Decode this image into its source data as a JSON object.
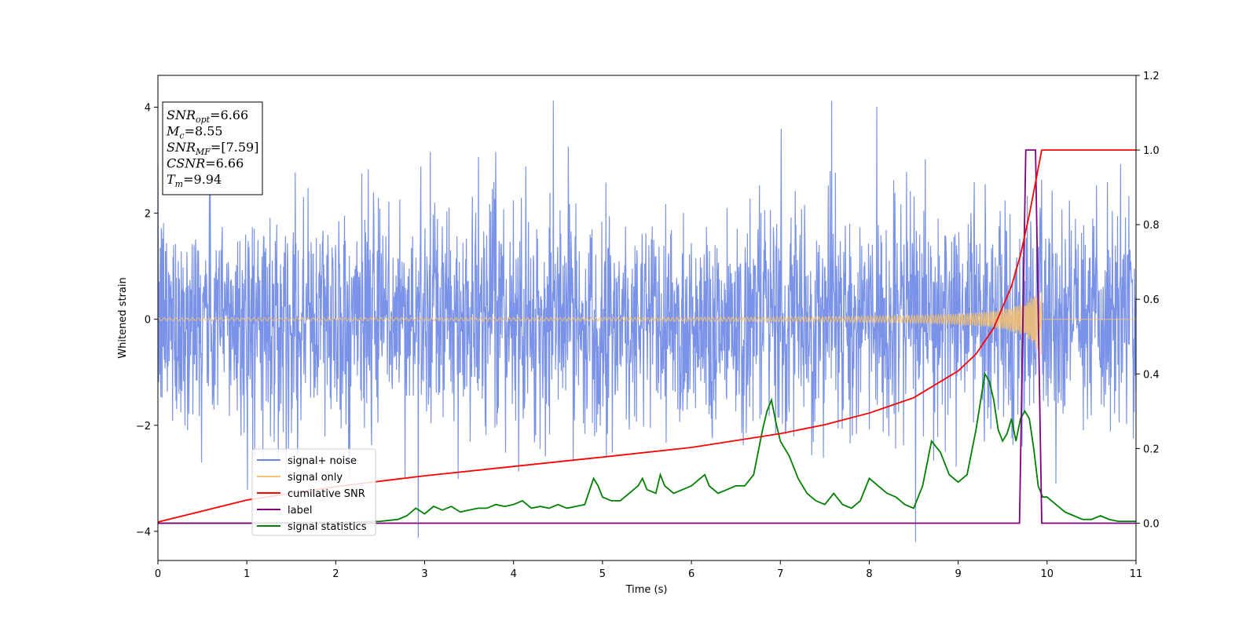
{
  "chart_data": {
    "type": "line",
    "xlabel": "Time (s)",
    "ylabel_left": "Whitened strain",
    "ylabel_right": "",
    "xlim": [
      0,
      11
    ],
    "ylim_left": [
      -4.55,
      4.6
    ],
    "ylim_right": [
      -0.1,
      1.2
    ],
    "xticks": [
      "0",
      "1",
      "2",
      "3",
      "4",
      "5",
      "6",
      "7",
      "8",
      "9",
      "10",
      "11"
    ],
    "yticks_left": [
      "−4",
      "−2",
      "0",
      "2",
      "4"
    ],
    "yticks_right": [
      "0.0",
      "0.2",
      "0.4",
      "0.6",
      "0.8",
      "1.0",
      "1.2"
    ],
    "grid": false,
    "legend_position": "lower-left",
    "annotation": {
      "lines": [
        {
          "main": "SNR",
          "sub": "opt",
          "value": "=6.66"
        },
        {
          "main": "M",
          "sub": "c",
          "value": "=8.55"
        },
        {
          "main": "SNR",
          "sub": "MF",
          "value": "=[7.59]"
        },
        {
          "main": "CSNR",
          "sub": "",
          "value": "=6.66"
        },
        {
          "main": "T",
          "sub": "m",
          "value": "=9.94"
        }
      ]
    },
    "series": [
      {
        "name": "signal+ noise",
        "color": "#6b87e6",
        "axis": "left",
        "description": "noisy whitened strain, amplitude ~±2.5 with spikes to ±4"
      },
      {
        "name": "signal only",
        "color": "#f5c070",
        "axis": "left",
        "chirp_end_time": 9.94,
        "max_amplitude": 0.72
      },
      {
        "name": "cumilative SNR",
        "color": "#ff0000",
        "axis": "right",
        "x": [
          0,
          1,
          2,
          3,
          4,
          5,
          6,
          7,
          7.5,
          8,
          8.5,
          9,
          9.2,
          9.4,
          9.6,
          9.7,
          9.8,
          9.88,
          9.94,
          10,
          11
        ],
        "y": [
          0.003,
          0.062,
          0.098,
          0.127,
          0.152,
          0.177,
          0.203,
          0.24,
          0.264,
          0.295,
          0.336,
          0.408,
          0.453,
          0.523,
          0.635,
          0.718,
          0.827,
          0.925,
          1.0,
          1.0,
          1.0
        ]
      },
      {
        "name": "label",
        "color": "#800080",
        "axis": "right",
        "x": [
          0,
          9.69,
          9.76,
          9.87,
          9.94,
          11
        ],
        "y": [
          0,
          0,
          1.0,
          1.0,
          0,
          0
        ]
      },
      {
        "name": "signal statistics",
        "color": "#008000",
        "axis": "right",
        "x": [
          0,
          1,
          2,
          2.5,
          2.7,
          2.8,
          2.9,
          3.0,
          3.1,
          3.2,
          3.3,
          3.4,
          3.5,
          3.6,
          3.7,
          3.8,
          3.9,
          4.0,
          4.1,
          4.2,
          4.3,
          4.4,
          4.5,
          4.6,
          4.7,
          4.8,
          4.9,
          4.95,
          5.0,
          5.1,
          5.2,
          5.3,
          5.4,
          5.45,
          5.5,
          5.6,
          5.65,
          5.7,
          5.8,
          5.9,
          6.0,
          6.1,
          6.15,
          6.2,
          6.3,
          6.4,
          6.5,
          6.6,
          6.7,
          6.8,
          6.85,
          6.9,
          6.95,
          7.0,
          7.1,
          7.2,
          7.3,
          7.4,
          7.5,
          7.6,
          7.7,
          7.8,
          7.9,
          8.0,
          8.1,
          8.2,
          8.3,
          8.4,
          8.5,
          8.6,
          8.7,
          8.8,
          8.9,
          9.0,
          9.1,
          9.2,
          9.3,
          9.35,
          9.4,
          9.45,
          9.5,
          9.55,
          9.6,
          9.65,
          9.7,
          9.75,
          9.8,
          9.85,
          9.9,
          9.95,
          10.0,
          10.1,
          10.2,
          10.3,
          10.4,
          10.5,
          10.6,
          10.7,
          10.8,
          10.9,
          11
        ],
        "y": [
          0,
          0,
          0.002,
          0.005,
          0.01,
          0.02,
          0.04,
          0.025,
          0.045,
          0.035,
          0.045,
          0.03,
          0.035,
          0.04,
          0.04,
          0.05,
          0.045,
          0.05,
          0.06,
          0.04,
          0.045,
          0.04,
          0.05,
          0.04,
          0.045,
          0.05,
          0.12,
          0.1,
          0.07,
          0.06,
          0.06,
          0.08,
          0.1,
          0.12,
          0.09,
          0.08,
          0.13,
          0.1,
          0.08,
          0.09,
          0.1,
          0.12,
          0.13,
          0.1,
          0.08,
          0.09,
          0.1,
          0.1,
          0.13,
          0.25,
          0.3,
          0.33,
          0.27,
          0.22,
          0.18,
          0.12,
          0.08,
          0.06,
          0.05,
          0.08,
          0.05,
          0.04,
          0.06,
          0.12,
          0.1,
          0.08,
          0.07,
          0.05,
          0.04,
          0.1,
          0.22,
          0.19,
          0.13,
          0.11,
          0.13,
          0.25,
          0.4,
          0.38,
          0.33,
          0.25,
          0.22,
          0.24,
          0.28,
          0.22,
          0.28,
          0.3,
          0.28,
          0.2,
          0.1,
          0.07,
          0.07,
          0.05,
          0.03,
          0.02,
          0.01,
          0.01,
          0.02,
          0.01,
          0.005,
          0.005,
          0.005
        ]
      }
    ]
  }
}
